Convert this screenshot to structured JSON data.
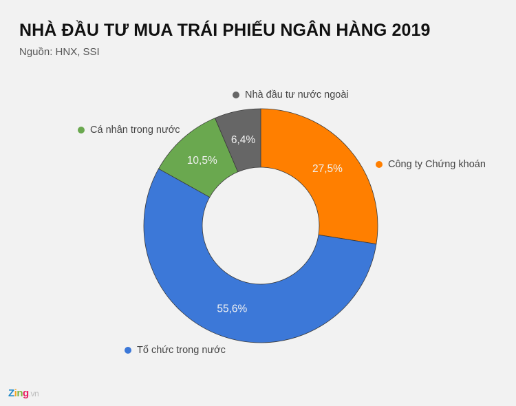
{
  "header": {
    "title": "NHÀ ĐẦU TƯ MUA TRÁI PHIẾU NGÂN HÀNG 2019",
    "source": "Nguồn: HNX, SSI"
  },
  "chart_data": {
    "type": "pie",
    "variant": "donut",
    "title": "NHÀ ĐẦU TƯ MUA TRÁI PHIẾU NGÂN HÀNG 2019",
    "subtitle": "Nguồn: HNX, SSI",
    "categories": [
      "Công ty Chứng khoán",
      "Tổ chức trong nước",
      "Cá nhân trong nước",
      "Nhà đầu tư nước ngoài"
    ],
    "values": [
      27.5,
      55.6,
      10.5,
      6.4
    ],
    "labels": [
      "27,5%",
      "55,6%",
      "10,5%",
      "6,4%"
    ],
    "colors": [
      "#ff7f00",
      "#3c78d8",
      "#6aa84f",
      "#666666"
    ],
    "start_angle": "12 o'clock, clockwise",
    "legend_position": "outside labels next to slices"
  },
  "legend": {
    "items": [
      {
        "label": "Nhà đầu tư nước ngoài",
        "color": "#666666"
      },
      {
        "label": "Cá nhân trong nước",
        "color": "#6aa84f"
      },
      {
        "label": "Công ty Chứng khoán",
        "color": "#ff7f00"
      },
      {
        "label": "Tổ chức trong nước",
        "color": "#3c78d8"
      }
    ]
  },
  "footer": {
    "logo": {
      "z": "Z",
      "i": "i",
      "n": "n",
      "g": "g",
      "vn": ".vn"
    }
  }
}
